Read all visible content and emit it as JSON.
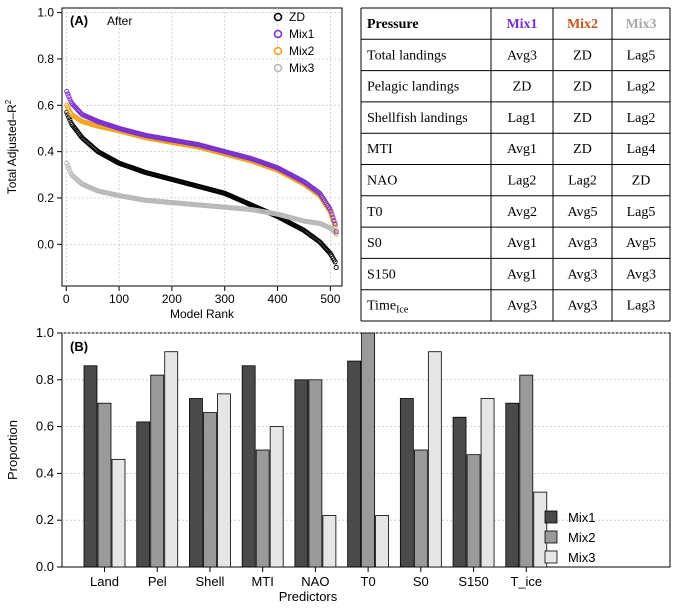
{
  "colors": {
    "zd": "#000000",
    "mix1": "#7b2fd0",
    "mix2": "#f2a31b",
    "mix3": "#b8b8b8",
    "bar_mix1": "#4a4a4a",
    "bar_mix2": "#9a9a9a",
    "bar_mix3": "#e6e6e6",
    "mix2_header": "#c0561b",
    "mix3_header": "#a9a9a9"
  },
  "chart_data": [
    {
      "panel": "A",
      "type": "scatter",
      "panel_label": "(A)",
      "title": "After",
      "xlabel": "Model Rank",
      "ylabel": "Total Adjusted–R",
      "ylabel_sup": "2",
      "xlim": [
        -8,
        522
      ],
      "ylim": [
        -0.18,
        1.02
      ],
      "x_ticks": [
        0,
        100,
        200,
        300,
        400,
        500
      ],
      "x_tick_labels": [
        "0",
        "100",
        "200",
        "300",
        "400",
        "500"
      ],
      "y_ticks": [
        0.0,
        0.2,
        0.4,
        0.6,
        0.8,
        1.0
      ],
      "y_tick_labels": [
        "0.0",
        "0.2",
        "0.4",
        "0.6",
        "0.8",
        "1.0"
      ],
      "grid": true,
      "legend_position": "top-right",
      "series": [
        {
          "name": "ZD",
          "color_key": "zd",
          "n": 512,
          "x": [
            1,
            10,
            30,
            60,
            100,
            150,
            200,
            250,
            300,
            350,
            400,
            450,
            480,
            500,
            510,
            512
          ],
          "y": [
            0.57,
            0.52,
            0.46,
            0.4,
            0.35,
            0.31,
            0.28,
            0.25,
            0.22,
            0.17,
            0.12,
            0.06,
            0.01,
            -0.04,
            -0.08,
            -0.12
          ]
        },
        {
          "name": "Mix1",
          "color_key": "mix1",
          "n": 512,
          "x": [
            1,
            10,
            30,
            60,
            100,
            150,
            200,
            250,
            300,
            350,
            400,
            450,
            480,
            500,
            510,
            512
          ],
          "y": [
            0.66,
            0.61,
            0.56,
            0.53,
            0.5,
            0.47,
            0.45,
            0.43,
            0.4,
            0.37,
            0.33,
            0.27,
            0.22,
            0.15,
            0.08,
            0.03
          ]
        },
        {
          "name": "Mix2",
          "color_key": "mix2",
          "n": 512,
          "x": [
            1,
            10,
            30,
            60,
            100,
            150,
            200,
            250,
            300,
            350,
            400,
            450,
            480,
            500,
            510,
            512
          ],
          "y": [
            0.6,
            0.56,
            0.53,
            0.51,
            0.49,
            0.46,
            0.44,
            0.42,
            0.39,
            0.36,
            0.32,
            0.26,
            0.21,
            0.14,
            0.07,
            0.02
          ]
        },
        {
          "name": "Mix3",
          "color_key": "mix3",
          "n": 512,
          "x": [
            1,
            10,
            30,
            60,
            100,
            150,
            200,
            250,
            300,
            350,
            400,
            450,
            480,
            500,
            510,
            512
          ],
          "y": [
            0.35,
            0.3,
            0.26,
            0.23,
            0.21,
            0.19,
            0.18,
            0.17,
            0.16,
            0.15,
            0.13,
            0.1,
            0.09,
            0.07,
            0.05,
            0.04
          ]
        }
      ]
    },
    {
      "panel": "table",
      "type": "table",
      "columns": [
        "Pressure",
        "Mix1",
        "Mix2",
        "Mix3"
      ],
      "rows": [
        {
          "label": "Total landings",
          "values": [
            "Avg3",
            "ZD",
            "Lag5"
          ]
        },
        {
          "label": "Pelagic landings",
          "values": [
            "ZD",
            "ZD",
            "Lag2"
          ]
        },
        {
          "label": "Shellfish landings",
          "values": [
            "Lag1",
            "ZD",
            "Lag2"
          ]
        },
        {
          "label": "MTI",
          "values": [
            "Avg1",
            "ZD",
            "Lag4"
          ]
        },
        {
          "label": "NAO",
          "values": [
            "Lag2",
            "Lag2",
            "ZD"
          ]
        },
        {
          "label": "T0",
          "values": [
            "Avg2",
            "Avg5",
            "Lag5"
          ]
        },
        {
          "label": "S0",
          "values": [
            "Avg1",
            "Avg3",
            "Avg5"
          ]
        },
        {
          "label": "S150",
          "values": [
            "Avg1",
            "Avg3",
            "Avg3"
          ]
        },
        {
          "label": "Time",
          "label_sub": "Ice",
          "values": [
            "Avg3",
            "Avg3",
            "Lag3"
          ]
        }
      ]
    },
    {
      "panel": "B",
      "type": "bar",
      "panel_label": "(B)",
      "title": "",
      "xlabel": "Predictors",
      "ylabel": "Proportion",
      "ylim": [
        0.0,
        1.0
      ],
      "y_ticks": [
        0.0,
        0.2,
        0.4,
        0.6,
        0.8,
        1.0
      ],
      "y_tick_labels": [
        "0.0",
        "0.2",
        "0.4",
        "0.6",
        "0.8",
        "1.0"
      ],
      "grid": true,
      "legend_position": "bottom-right",
      "categories": [
        "Land",
        "Pel",
        "Shell",
        "MTI",
        "NAO",
        "T0",
        "S0",
        "S150",
        "T_ice"
      ],
      "series": [
        {
          "name": "Mix1",
          "color_key": "bar_mix1",
          "values": [
            0.86,
            0.62,
            0.72,
            0.86,
            0.8,
            0.88,
            0.72,
            0.64,
            0.7
          ]
        },
        {
          "name": "Mix2",
          "color_key": "bar_mix2",
          "values": [
            0.7,
            0.82,
            0.66,
            0.5,
            0.8,
            1.0,
            0.5,
            0.48,
            0.82
          ]
        },
        {
          "name": "Mix3",
          "color_key": "bar_mix3",
          "values": [
            0.46,
            0.92,
            0.74,
            0.6,
            0.22,
            0.22,
            0.92,
            0.72,
            0.32
          ]
        }
      ]
    }
  ]
}
